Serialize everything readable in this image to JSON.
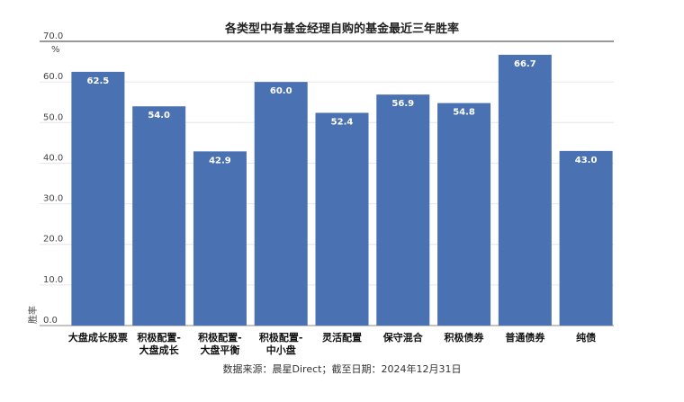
{
  "chart_data": {
    "type": "bar",
    "title": "各类型中有基金经理自购的基金最近三年胜率",
    "ylabel": "胜率",
    "yunit": "%",
    "ylim": [
      0,
      70
    ],
    "yticks": [
      "0.0",
      "10.0",
      "20.0",
      "30.0",
      "40.0",
      "50.0",
      "60.0",
      "70.0"
    ],
    "grid": true,
    "categories": [
      [
        "大盘成长股票"
      ],
      [
        "积极配置-",
        "大盘成长"
      ],
      [
        "积极配置-",
        "大盘平衡"
      ],
      [
        "积极配置-",
        "中小盘"
      ],
      [
        "灵活配置"
      ],
      [
        "保守混合"
      ],
      [
        "积极债券"
      ],
      [
        "普通债券"
      ],
      [
        "纯债"
      ]
    ],
    "values": [
      62.5,
      54.0,
      42.9,
      60.0,
      52.4,
      56.9,
      54.8,
      66.7,
      43.0
    ],
    "value_labels": [
      "62.5",
      "54.0",
      "42.9",
      "60.0",
      "52.4",
      "56.9",
      "54.8",
      "66.7",
      "43.0"
    ],
    "bar_color": "#4a72b2",
    "source": "数据来源：晨星Direct；截至日期：2024年12月31日"
  }
}
